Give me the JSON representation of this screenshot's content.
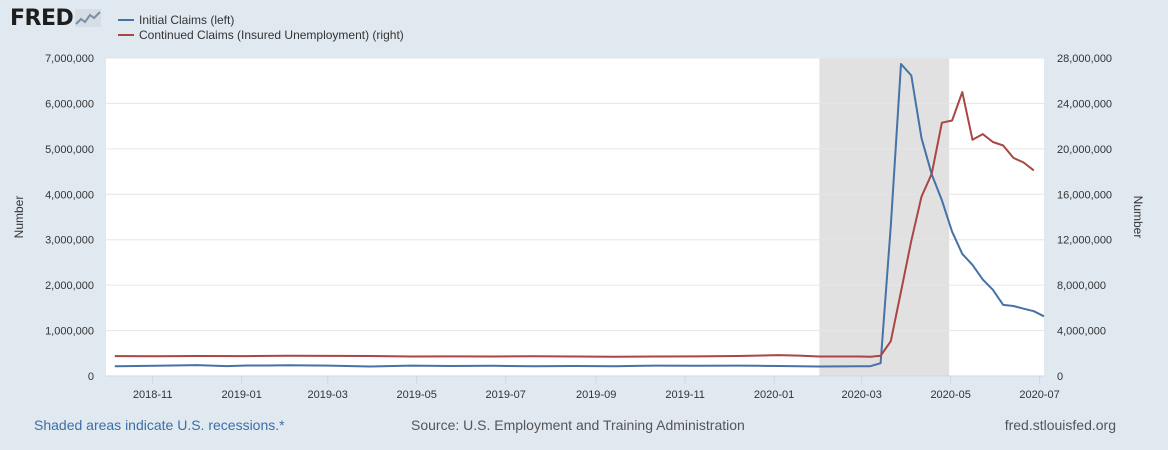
{
  "logo": {
    "text": "FRED"
  },
  "footer": {
    "recession_note": "Shaded areas indicate U.S. recessions.*",
    "source": "Source: U.S. Employment and Training Administration",
    "site": "fred.stlouisfed.org"
  },
  "colors": {
    "initial": "#4572a7",
    "continued": "#aa4643",
    "recession": "#e1e1e1"
  },
  "chart_data": {
    "type": "line",
    "xlim": [
      "2018-09-30",
      "2020-07-04"
    ],
    "x_ticks": [
      "2018-11",
      "2019-01",
      "2019-03",
      "2019-05",
      "2019-07",
      "2019-09",
      "2019-11",
      "2020-01",
      "2020-03",
      "2020-05",
      "2020-07"
    ],
    "ylabel_left": "Number",
    "ylabel_right": "Number",
    "ylim_left": [
      0,
      7000000
    ],
    "ylim_right": [
      0,
      28000000
    ],
    "y_ticks_left": [
      "0",
      "1,000,000",
      "2,000,000",
      "3,000,000",
      "4,000,000",
      "5,000,000",
      "6,000,000",
      "7,000,000"
    ],
    "y_ticks_right": [
      "0",
      "4,000,000",
      "8,000,000",
      "12,000,000",
      "16,000,000",
      "20,000,000",
      "24,000,000",
      "28,000,000"
    ],
    "grid": true,
    "legend_position": "top-left",
    "recession_shading": {
      "start": "2020-02-01",
      "end": "2020-04-30"
    },
    "series": [
      {
        "name": "Initial Claims (left)",
        "axis": "left",
        "x": [
          "2018-10-06",
          "2018-11-03",
          "2018-12-01",
          "2018-12-22",
          "2019-01-05",
          "2019-01-19",
          "2019-02-02",
          "2019-03-02",
          "2019-03-30",
          "2019-04-27",
          "2019-05-25",
          "2019-06-22",
          "2019-07-20",
          "2019-08-17",
          "2019-09-14",
          "2019-10-12",
          "2019-11-09",
          "2019-12-07",
          "2019-12-21",
          "2020-01-04",
          "2020-02-01",
          "2020-02-29",
          "2020-03-07",
          "2020-03-14",
          "2020-03-21",
          "2020-03-28",
          "2020-04-04",
          "2020-04-11",
          "2020-04-18",
          "2020-04-25",
          "2020-05-02",
          "2020-05-09",
          "2020-05-16",
          "2020-05-23",
          "2020-05-30",
          "2020-06-06",
          "2020-06-13",
          "2020-06-20",
          "2020-06-27",
          "2020-07-04"
        ],
        "values": [
          213000,
          225000,
          240000,
          218000,
          231000,
          231000,
          238000,
          230000,
          210000,
          228000,
          220000,
          225000,
          215000,
          220000,
          215000,
          230000,
          225000,
          230000,
          225000,
          220000,
          210000,
          215000,
          215000,
          282000,
          3307000,
          6867000,
          6615000,
          5237000,
          4442000,
          3867000,
          3176000,
          2687000,
          2446000,
          2126000,
          1897000,
          1566000,
          1540000,
          1482000,
          1427000,
          1314000
        ]
      },
      {
        "name": "Continued Claims (Insured Unemployment) (right)",
        "axis": "right",
        "x": [
          "2018-10-06",
          "2018-11-03",
          "2018-12-01",
          "2019-01-05",
          "2019-02-02",
          "2019-03-02",
          "2019-03-30",
          "2019-04-27",
          "2019-05-25",
          "2019-06-22",
          "2019-07-20",
          "2019-08-17",
          "2019-09-14",
          "2019-10-12",
          "2019-11-09",
          "2019-12-07",
          "2020-01-04",
          "2020-01-18",
          "2020-02-01",
          "2020-02-15",
          "2020-02-29",
          "2020-03-07",
          "2020-03-14",
          "2020-03-21",
          "2020-03-28",
          "2020-04-04",
          "2020-04-11",
          "2020-04-18",
          "2020-04-25",
          "2020-05-02",
          "2020-05-09",
          "2020-05-16",
          "2020-05-23",
          "2020-05-30",
          "2020-06-06",
          "2020-06-13",
          "2020-06-20",
          "2020-06-27"
        ],
        "values": [
          1750000,
          1740000,
          1760000,
          1750000,
          1780000,
          1770000,
          1760000,
          1720000,
          1730000,
          1720000,
          1740000,
          1720000,
          1700000,
          1720000,
          1730000,
          1760000,
          1840000,
          1800000,
          1720000,
          1720000,
          1720000,
          1700000,
          1780000,
          3060000,
          7440000,
          11900000,
          15800000,
          17800000,
          22300000,
          22500000,
          25000000,
          20800000,
          21300000,
          20600000,
          20300000,
          19200000,
          18800000,
          18100000
        ]
      }
    ]
  }
}
